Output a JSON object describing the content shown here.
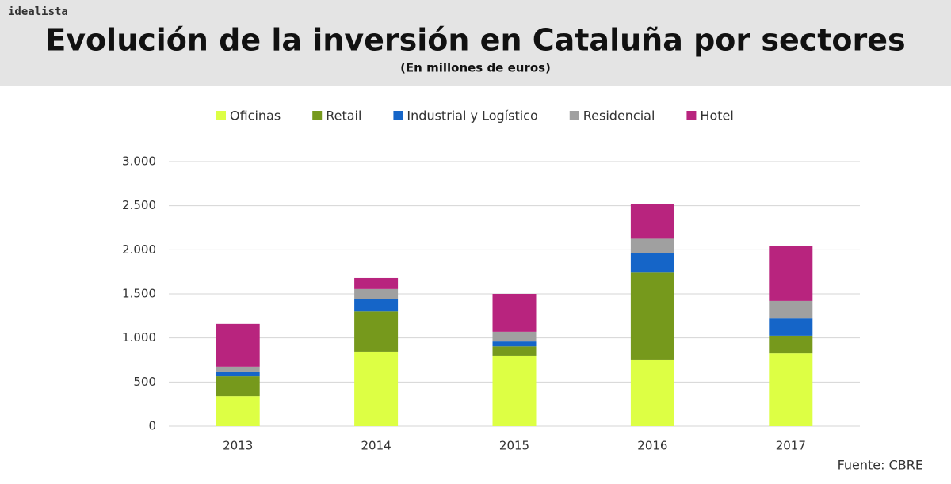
{
  "brand": "idealista",
  "chart_data": {
    "type": "stacked-bar",
    "title": "Evolución de la inversión en Cataluña por sectores",
    "subtitle": "(En millones de euros)",
    "source": "Fuente: CBRE",
    "categories": [
      "2013",
      "2014",
      "2015",
      "2016",
      "2017"
    ],
    "series": [
      {
        "name": "Oficinas",
        "color": "#ddff44",
        "values": [
          340,
          845,
          800,
          755,
          825
        ]
      },
      {
        "name": "Retail",
        "color": "#76991c",
        "values": [
          225,
          455,
          105,
          985,
          200
        ]
      },
      {
        "name": "Industrial y Logístico",
        "color": "#1565c8",
        "values": [
          55,
          145,
          55,
          225,
          195
        ]
      },
      {
        "name": "Residencial",
        "color": "#a0a0a0",
        "values": [
          55,
          110,
          110,
          160,
          200
        ]
      },
      {
        "name": "Hotel",
        "color": "#b8247e",
        "values": [
          485,
          125,
          430,
          395,
          625
        ]
      }
    ],
    "ylim": [
      0,
      3000
    ],
    "yticks": [
      0,
      500,
      {
        "value": 1000,
        "label": "1.000"
      },
      {
        "value": 1500,
        "label": "1.500"
      },
      {
        "value": 2000,
        "label": "2.000"
      },
      {
        "value": 2500,
        "label": "2.500"
      },
      {
        "value": 3000,
        "label": "3.000"
      }
    ],
    "grid": true,
    "legend": "top"
  }
}
